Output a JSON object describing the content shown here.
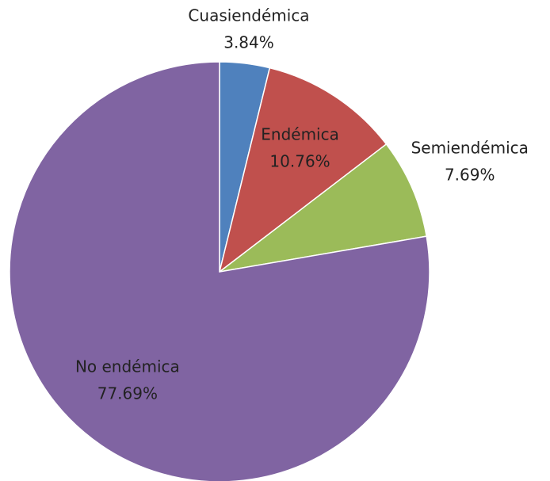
{
  "chart_data": {
    "type": "pie",
    "categories": [
      "Cuasiendémica",
      "Endémica",
      "Semiendémica",
      "No endémica"
    ],
    "values": [
      3.84,
      10.76,
      7.69,
      77.69
    ],
    "value_labels": [
      "3.84%",
      "10.76%",
      "7.69%",
      "77.69%"
    ],
    "colors": [
      "#4f81bd",
      "#c0504d",
      "#9bbb59",
      "#8064a2"
    ]
  }
}
